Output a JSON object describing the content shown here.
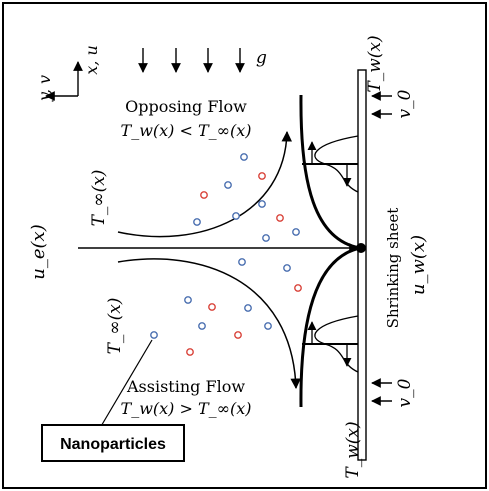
{
  "labels": {
    "axis_x": "x, u",
    "axis_y": "y, v",
    "gravity": "g",
    "opposing_title": "Opposing Flow",
    "opposing_condition": "T_w(x) < T_∞(x)",
    "assisting_title": "Assisting Flow",
    "assisting_condition": "T_w(x) > T_∞(x)",
    "free_stream_velocity": "u_e(x)",
    "ambient_temp_upper": "T_∞(x)",
    "ambient_temp_lower": "T_∞(x)",
    "wall_temp_top": "T_w(x)",
    "wall_temp_bottom": "T_w(x)",
    "suction_top": "v_0",
    "suction_bottom": "v_0",
    "sheet_caption": "Shrinking sheet",
    "sheet_velocity": "u_w(x)",
    "nanoparticles": "Nanoparticles"
  },
  "colors": {
    "particle_blue": "#4a6fb0",
    "particle_red": "#d9433a"
  }
}
